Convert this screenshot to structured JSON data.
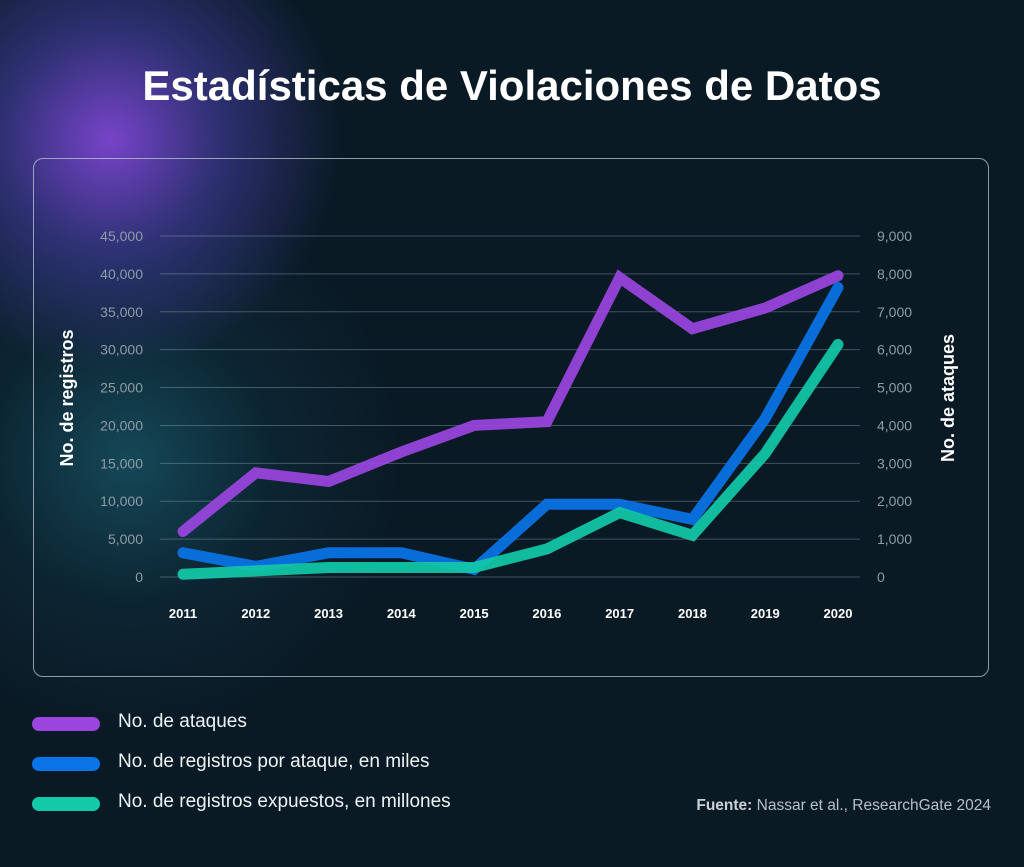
{
  "title": "Estadísticas de Violaciones de Datos",
  "source": {
    "label": "Fuente:",
    "text": "Nassar et al., ResearchGate 2024"
  },
  "chart_data": {
    "type": "line",
    "title": "Estadísticas de Violaciones de Datos",
    "xlabel": "",
    "ylabel": "No. de registros",
    "y2label": "No. de ataques",
    "ylim": [
      0,
      45000
    ],
    "y2lim": [
      0,
      9000
    ],
    "yticks": [
      "0",
      "5,000",
      "10,000",
      "15,000",
      "20,000",
      "25,000",
      "30,000",
      "35,000",
      "40,000",
      "45,000"
    ],
    "y2ticks": [
      "0",
      "1,000",
      "2,000",
      "3,000",
      "4,000",
      "5,000",
      "6,000",
      "7,000",
      "8,000",
      "9,000"
    ],
    "grid": true,
    "legend": "bottom-left",
    "categories": [
      "2011",
      "2012",
      "2013",
      "2014",
      "2015",
      "2016",
      "2017",
      "2018",
      "2019",
      "2020"
    ],
    "series": [
      {
        "name": "No. de ataques",
        "axis": "right",
        "color": "#9b45e0",
        "values": [
          1200,
          2750,
          2520,
          3300,
          4000,
          4100,
          7900,
          6550,
          7100,
          7950
        ]
      },
      {
        "name": "No. de registros por ataque, en miles",
        "axis": "left",
        "color": "#0a74e8",
        "values": [
          3200,
          1400,
          3200,
          3200,
          1000,
          9600,
          9600,
          7600,
          20900,
          38200
        ]
      },
      {
        "name": "No. de registros expuestos, en millones",
        "axis": "left",
        "color": "#12c9a8",
        "values": [
          350,
          800,
          1250,
          1250,
          1250,
          3700,
          8500,
          5500,
          16300,
          30700
        ]
      }
    ]
  }
}
